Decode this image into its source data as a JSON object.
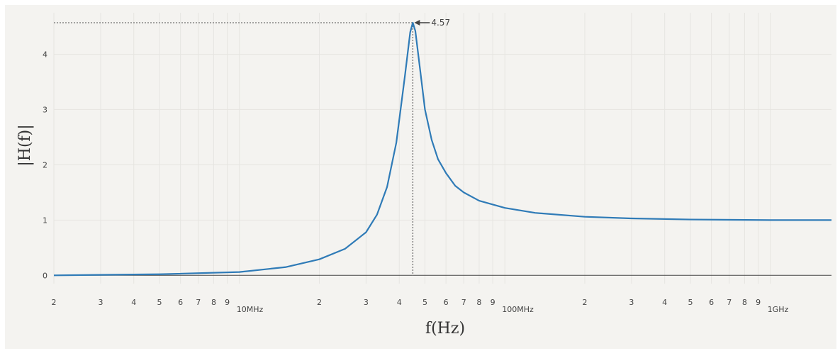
{
  "chart_data": {
    "type": "line",
    "xscale": "log",
    "xlabel": "f(Hz)",
    "ylabel": "|H(f)|",
    "xlim": [
      2000000,
      1700000000
    ],
    "ylim": [
      -0.15,
      4.75
    ],
    "grid": true,
    "legend": "none",
    "colors": {
      "background": "#f4f3f0",
      "line": "#2f7bb7",
      "zero_line": "#444444",
      "grid": "#e6e5e1"
    },
    "x_ticks": [
      {
        "value": 2000000,
        "label": "2"
      },
      {
        "value": 3000000,
        "label": "3"
      },
      {
        "value": 4000000,
        "label": "4"
      },
      {
        "value": 5000000,
        "label": "5"
      },
      {
        "value": 6000000,
        "label": "6"
      },
      {
        "value": 7000000,
        "label": "7"
      },
      {
        "value": 8000000,
        "label": "8"
      },
      {
        "value": 9000000,
        "label": "9"
      },
      {
        "value": 10000000,
        "label": "10MHz"
      },
      {
        "value": 20000000,
        "label": "2"
      },
      {
        "value": 30000000,
        "label": "3"
      },
      {
        "value": 40000000,
        "label": "4"
      },
      {
        "value": 50000000,
        "label": "5"
      },
      {
        "value": 60000000,
        "label": "6"
      },
      {
        "value": 70000000,
        "label": "7"
      },
      {
        "value": 80000000,
        "label": "8"
      },
      {
        "value": 90000000,
        "label": "9"
      },
      {
        "value": 100000000,
        "label": "100MHz"
      },
      {
        "value": 200000000,
        "label": "2"
      },
      {
        "value": 300000000,
        "label": "3"
      },
      {
        "value": 400000000,
        "label": "4"
      },
      {
        "value": 500000000,
        "label": "5"
      },
      {
        "value": 600000000,
        "label": "6"
      },
      {
        "value": 700000000,
        "label": "7"
      },
      {
        "value": 800000000,
        "label": "8"
      },
      {
        "value": 900000000,
        "label": "9"
      },
      {
        "value": 1000000000,
        "label": "1GHz"
      }
    ],
    "y_ticks": [
      {
        "value": 0,
        "label": "0"
      },
      {
        "value": 1,
        "label": "1"
      },
      {
        "value": 2,
        "label": "2"
      },
      {
        "value": 3,
        "label": "3"
      },
      {
        "value": 4,
        "label": "4"
      }
    ],
    "series": [
      {
        "x": [
          2000000,
          5000000,
          10000000,
          15000000,
          20000000,
          25000000,
          30000000,
          33000000,
          36000000,
          39000000,
          42000000,
          44000000,
          45000000,
          46000000,
          48000000,
          50000000,
          53000000,
          56000000,
          60000000,
          65000000,
          70000000,
          80000000,
          100000000,
          130000000,
          200000000,
          300000000,
          500000000,
          1000000000,
          1700000000
        ],
        "y": [
          0.0,
          0.02,
          0.06,
          0.15,
          0.29,
          0.48,
          0.78,
          1.1,
          1.6,
          2.4,
          3.6,
          4.4,
          4.57,
          4.42,
          3.7,
          3.0,
          2.45,
          2.1,
          1.85,
          1.62,
          1.5,
          1.35,
          1.22,
          1.13,
          1.06,
          1.03,
          1.01,
          1.0,
          1.0
        ]
      }
    ],
    "annotations": [
      {
        "text": "4.57",
        "x": 45000000,
        "y": 4.57
      }
    ]
  }
}
